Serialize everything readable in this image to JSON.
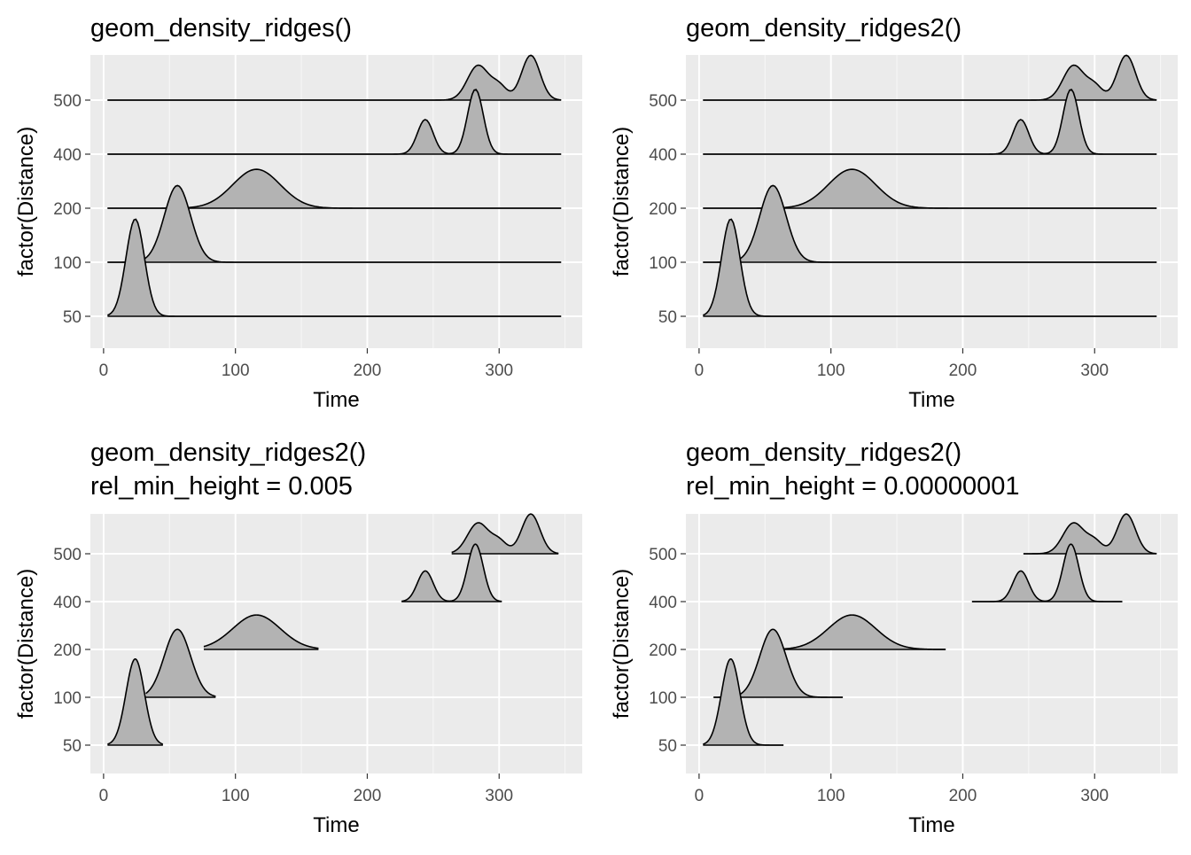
{
  "colors": {
    "panel_bg": "#ebebeb",
    "grid_major": "#ffffff",
    "ridge_fill": "#b3b3b3",
    "ridge_line": "#000000",
    "tick_text": "#4d4d4d",
    "title_text": "#000000"
  },
  "chart_data": [
    {
      "type": "area",
      "title": "geom_density_ridges()",
      "subtitle": "",
      "xlabel": "Time",
      "ylabel": "factor(Distance)",
      "xlim": [
        -10,
        363
      ],
      "x_ticks": [
        0,
        100,
        200,
        300
      ],
      "y_ticks": [
        "50",
        "100",
        "200",
        "400",
        "500"
      ],
      "series": [
        {
          "name": "50",
          "x_range": [
            3,
            347
          ],
          "peaks": [
            {
              "center": 24,
              "sd": 7,
              "height": 1.8
            }
          ]
        },
        {
          "name": "100",
          "x_range": [
            3,
            347
          ],
          "peaks": [
            {
              "center": 56,
              "sd": 10,
              "height": 1.42
            }
          ]
        },
        {
          "name": "200",
          "x_range": [
            3,
            347
          ],
          "peaks": [
            {
              "center": 116,
              "sd": 18,
              "height": 0.72
            }
          ]
        },
        {
          "name": "400",
          "x_range": [
            3,
            347
          ],
          "peaks": [
            {
              "center": 244,
              "sd": 6,
              "height": 0.64
            },
            {
              "center": 282,
              "sd": 6,
              "height": 1.2
            }
          ]
        },
        {
          "name": "500",
          "x_range": [
            3,
            347
          ],
          "peaks": [
            {
              "center": 284,
              "sd": 8,
              "height": 0.64
            },
            {
              "center": 300,
              "sd": 6,
              "height": 0.25
            },
            {
              "center": 324,
              "sd": 7,
              "height": 0.83
            }
          ]
        }
      ],
      "grid": true
    },
    {
      "type": "area",
      "title": "geom_density_ridges2()",
      "subtitle": "",
      "xlabel": "Time",
      "ylabel": "factor(Distance)",
      "xlim": [
        -10,
        363
      ],
      "x_ticks": [
        0,
        100,
        200,
        300
      ],
      "y_ticks": [
        "50",
        "100",
        "200",
        "400",
        "500"
      ],
      "series": [
        {
          "name": "50",
          "x_range": [
            3,
            347
          ],
          "peaks": [
            {
              "center": 24,
              "sd": 7,
              "height": 1.8
            }
          ]
        },
        {
          "name": "100",
          "x_range": [
            3,
            347
          ],
          "peaks": [
            {
              "center": 56,
              "sd": 10,
              "height": 1.42
            }
          ]
        },
        {
          "name": "200",
          "x_range": [
            3,
            347
          ],
          "peaks": [
            {
              "center": 116,
              "sd": 18,
              "height": 0.72
            }
          ]
        },
        {
          "name": "400",
          "x_range": [
            3,
            347
          ],
          "peaks": [
            {
              "center": 244,
              "sd": 6,
              "height": 0.64
            },
            {
              "center": 282,
              "sd": 6,
              "height": 1.2
            }
          ]
        },
        {
          "name": "500",
          "x_range": [
            3,
            347
          ],
          "peaks": [
            {
              "center": 284,
              "sd": 8,
              "height": 0.64
            },
            {
              "center": 300,
              "sd": 6,
              "height": 0.25
            },
            {
              "center": 324,
              "sd": 7,
              "height": 0.83
            }
          ]
        }
      ],
      "grid": true
    },
    {
      "type": "area",
      "title": "geom_density_ridges2()",
      "subtitle": "rel_min_height = 0.005",
      "xlabel": "Time",
      "ylabel": "factor(Distance)",
      "xlim": [
        -10,
        363
      ],
      "x_ticks": [
        0,
        100,
        200,
        300
      ],
      "y_ticks": [
        "50",
        "100",
        "200",
        "400",
        "500"
      ],
      "series": [
        {
          "name": "50",
          "x_range": [
            3,
            45
          ],
          "peaks": [
            {
              "center": 24,
              "sd": 7,
              "height": 1.8
            }
          ]
        },
        {
          "name": "100",
          "x_range": [
            32,
            85
          ],
          "peaks": [
            {
              "center": 56,
              "sd": 10,
              "height": 1.42
            }
          ]
        },
        {
          "name": "200",
          "x_range": [
            76,
            163
          ],
          "peaks": [
            {
              "center": 116,
              "sd": 18,
              "height": 0.72
            }
          ]
        },
        {
          "name": "400",
          "x_range": [
            226,
            302
          ],
          "peaks": [
            {
              "center": 244,
              "sd": 6,
              "height": 0.64
            },
            {
              "center": 282,
              "sd": 6,
              "height": 1.2
            }
          ]
        },
        {
          "name": "500",
          "x_range": [
            264,
            345
          ],
          "peaks": [
            {
              "center": 284,
              "sd": 8,
              "height": 0.64
            },
            {
              "center": 300,
              "sd": 6,
              "height": 0.25
            },
            {
              "center": 324,
              "sd": 7,
              "height": 0.83
            }
          ]
        }
      ],
      "grid": true
    },
    {
      "type": "area",
      "title": "geom_density_ridges2()",
      "subtitle": "rel_min_height = 0.00000001",
      "xlabel": "Time",
      "ylabel": "factor(Distance)",
      "xlim": [
        -10,
        363
      ],
      "x_ticks": [
        0,
        100,
        200,
        300
      ],
      "y_ticks": [
        "50",
        "100",
        "200",
        "400",
        "500"
      ],
      "series": [
        {
          "name": "50",
          "x_range": [
            3,
            64
          ],
          "peaks": [
            {
              "center": 24,
              "sd": 7,
              "height": 1.8
            }
          ]
        },
        {
          "name": "100",
          "x_range": [
            11,
            109
          ],
          "peaks": [
            {
              "center": 56,
              "sd": 10,
              "height": 1.42
            }
          ]
        },
        {
          "name": "200",
          "x_range": [
            63,
            187
          ],
          "peaks": [
            {
              "center": 116,
              "sd": 18,
              "height": 0.72
            }
          ]
        },
        {
          "name": "400",
          "x_range": [
            207,
            321
          ],
          "peaks": [
            {
              "center": 244,
              "sd": 6,
              "height": 0.64
            },
            {
              "center": 282,
              "sd": 6,
              "height": 1.2
            }
          ]
        },
        {
          "name": "500",
          "x_range": [
            246,
            347
          ],
          "peaks": [
            {
              "center": 284,
              "sd": 8,
              "height": 0.64
            },
            {
              "center": 300,
              "sd": 6,
              "height": 0.25
            },
            {
              "center": 324,
              "sd": 7,
              "height": 0.83
            }
          ]
        }
      ],
      "grid": true
    }
  ]
}
